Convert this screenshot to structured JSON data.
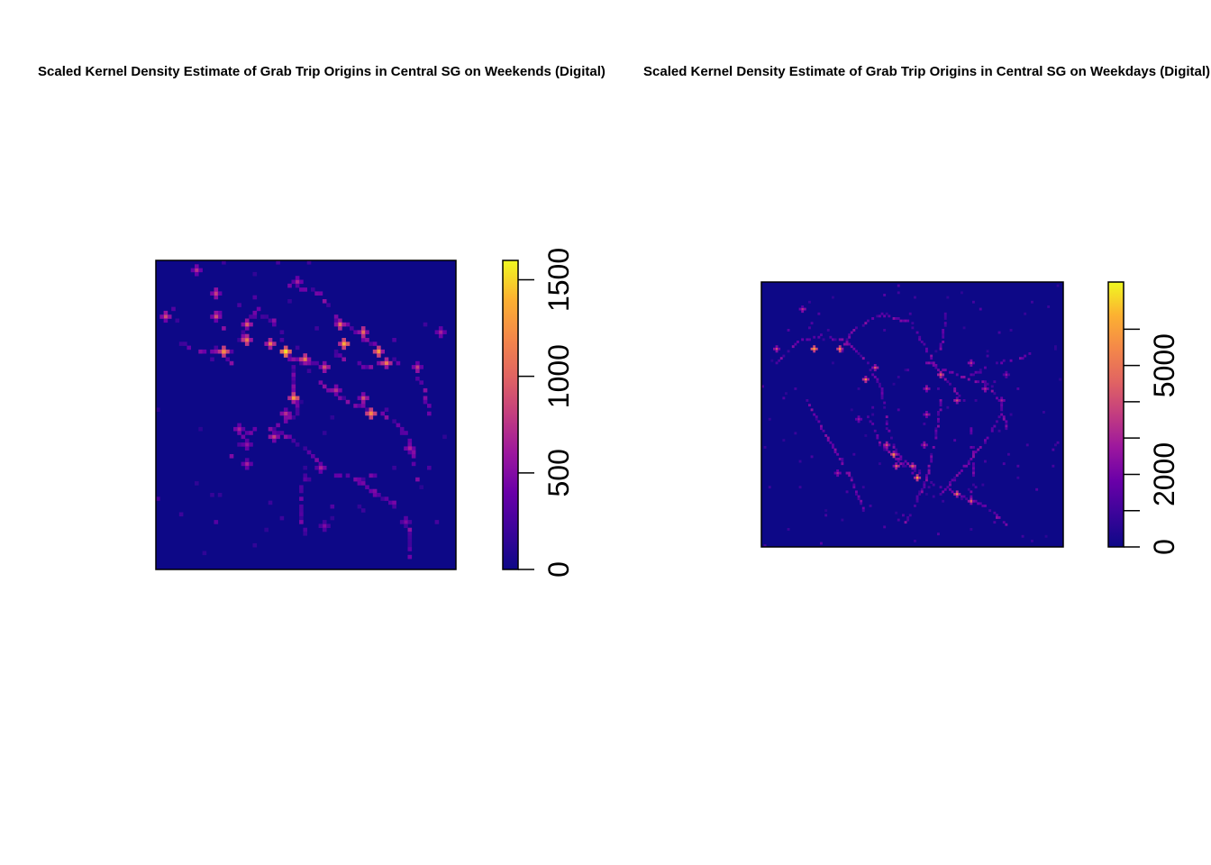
{
  "chart_data": [
    {
      "type": "heatmap",
      "title": "Scaled Kernel Density Estimate of Grab Trip Origins in Central SG on Weekends (Digital)",
      "xlabel": "",
      "ylabel": "",
      "colorbar": {
        "ticks": [
          0,
          500,
          1000,
          1500
        ],
        "range": [
          0,
          1600
        ],
        "palette": "plasma"
      },
      "hotspots": [
        {
          "x": 0.2,
          "y": 0.18,
          "v": 0.55
        },
        {
          "x": 0.22,
          "y": 0.3,
          "v": 0.75
        },
        {
          "x": 0.2,
          "y": 0.1,
          "v": 0.5
        },
        {
          "x": 0.3,
          "y": 0.2,
          "v": 0.6
        },
        {
          "x": 0.3,
          "y": 0.25,
          "v": 0.7
        },
        {
          "x": 0.38,
          "y": 0.27,
          "v": 0.7
        },
        {
          "x": 0.44,
          "y": 0.3,
          "v": 0.95
        },
        {
          "x": 0.5,
          "y": 0.32,
          "v": 0.7
        },
        {
          "x": 0.56,
          "y": 0.35,
          "v": 0.55
        },
        {
          "x": 0.62,
          "y": 0.2,
          "v": 0.65
        },
        {
          "x": 0.63,
          "y": 0.27,
          "v": 0.85
        },
        {
          "x": 0.7,
          "y": 0.23,
          "v": 0.65
        },
        {
          "x": 0.75,
          "y": 0.3,
          "v": 0.8
        },
        {
          "x": 0.78,
          "y": 0.33,
          "v": 0.7
        },
        {
          "x": 0.46,
          "y": 0.45,
          "v": 0.8
        },
        {
          "x": 0.43,
          "y": 0.5,
          "v": 0.45
        },
        {
          "x": 0.6,
          "y": 0.42,
          "v": 0.45
        },
        {
          "x": 0.72,
          "y": 0.5,
          "v": 0.75
        },
        {
          "x": 0.7,
          "y": 0.45,
          "v": 0.55
        },
        {
          "x": 0.02,
          "y": 0.18,
          "v": 0.55
        },
        {
          "x": 0.13,
          "y": 0.03,
          "v": 0.45
        },
        {
          "x": 0.48,
          "y": 0.07,
          "v": 0.4
        },
        {
          "x": 0.28,
          "y": 0.55,
          "v": 0.4
        },
        {
          "x": 0.4,
          "y": 0.58,
          "v": 0.5
        },
        {
          "x": 0.3,
          "y": 0.6,
          "v": 0.35
        },
        {
          "x": 0.55,
          "y": 0.68,
          "v": 0.4
        },
        {
          "x": 0.88,
          "y": 0.35,
          "v": 0.5
        },
        {
          "x": 0.96,
          "y": 0.23,
          "v": 0.4
        },
        {
          "x": 0.86,
          "y": 0.62,
          "v": 0.4
        },
        {
          "x": 0.3,
          "y": 0.67,
          "v": 0.4
        },
        {
          "x": 0.57,
          "y": 0.87,
          "v": 0.3
        },
        {
          "x": 0.84,
          "y": 0.86,
          "v": 0.3
        }
      ],
      "roads": [
        [
          [
            0.2,
            0.1
          ],
          [
            0.22,
            0.2
          ],
          [
            0.2,
            0.3
          ],
          [
            0.25,
            0.33
          ]
        ],
        [
          [
            0.28,
            0.25
          ],
          [
            0.34,
            0.16
          ],
          [
            0.4,
            0.2
          ],
          [
            0.45,
            0.32
          ],
          [
            0.55,
            0.34
          ]
        ],
        [
          [
            0.45,
            0.08
          ],
          [
            0.55,
            0.1
          ],
          [
            0.6,
            0.18
          ],
          [
            0.7,
            0.25
          ],
          [
            0.8,
            0.32
          ],
          [
            0.9,
            0.4
          ],
          [
            0.92,
            0.5
          ]
        ],
        [
          [
            0.46,
            0.35
          ],
          [
            0.47,
            0.5
          ],
          [
            0.4,
            0.55
          ],
          [
            0.3,
            0.56
          ],
          [
            0.25,
            0.65
          ]
        ],
        [
          [
            0.4,
            0.55
          ],
          [
            0.5,
            0.62
          ],
          [
            0.6,
            0.7
          ],
          [
            0.68,
            0.72
          ],
          [
            0.75,
            0.7
          ]
        ],
        [
          [
            0.55,
            0.4
          ],
          [
            0.62,
            0.45
          ],
          [
            0.7,
            0.48
          ],
          [
            0.8,
            0.52
          ],
          [
            0.86,
            0.6
          ],
          [
            0.88,
            0.72
          ]
        ],
        [
          [
            0.5,
            0.7
          ],
          [
            0.48,
            0.8
          ],
          [
            0.5,
            0.9
          ]
        ],
        [
          [
            0.65,
            0.7
          ],
          [
            0.72,
            0.75
          ],
          [
            0.8,
            0.8
          ],
          [
            0.85,
            0.88
          ],
          [
            0.86,
            0.98
          ]
        ],
        [
          [
            0.05,
            0.25
          ],
          [
            0.15,
            0.3
          ],
          [
            0.25,
            0.3
          ]
        ],
        [
          [
            0.6,
            0.3
          ],
          [
            0.7,
            0.35
          ],
          [
            0.78,
            0.33
          ]
        ]
      ]
    },
    {
      "type": "heatmap",
      "title": "Scaled Kernel Density Estimate of Grab Trip Origins in Central SG on Weekdays (Digital)",
      "xlabel": "",
      "ylabel": "",
      "colorbar": {
        "ticks": [
          0,
          2000,
          5000
        ],
        "minor_ticks": [
          1000,
          3000,
          4000,
          6000
        ],
        "range": [
          0,
          7300
        ],
        "palette": "plasma"
      },
      "hotspots": [
        {
          "x": 0.17,
          "y": 0.25,
          "v": 0.85
        },
        {
          "x": 0.26,
          "y": 0.25,
          "v": 0.8
        },
        {
          "x": 0.35,
          "y": 0.37,
          "v": 0.75
        },
        {
          "x": 0.38,
          "y": 0.32,
          "v": 0.6
        },
        {
          "x": 0.05,
          "y": 0.25,
          "v": 0.55
        },
        {
          "x": 0.13,
          "y": 0.1,
          "v": 0.45
        },
        {
          "x": 0.55,
          "y": 0.4,
          "v": 0.5
        },
        {
          "x": 0.6,
          "y": 0.35,
          "v": 0.6
        },
        {
          "x": 0.65,
          "y": 0.45,
          "v": 0.55
        },
        {
          "x": 0.42,
          "y": 0.62,
          "v": 0.55
        },
        {
          "x": 0.44,
          "y": 0.65,
          "v": 0.75
        },
        {
          "x": 0.5,
          "y": 0.7,
          "v": 0.6
        },
        {
          "x": 0.52,
          "y": 0.74,
          "v": 0.85
        },
        {
          "x": 0.45,
          "y": 0.7,
          "v": 0.65
        },
        {
          "x": 0.65,
          "y": 0.8,
          "v": 0.75
        },
        {
          "x": 0.7,
          "y": 0.83,
          "v": 0.6
        },
        {
          "x": 0.54,
          "y": 0.62,
          "v": 0.45
        },
        {
          "x": 0.75,
          "y": 0.4,
          "v": 0.45
        },
        {
          "x": 0.7,
          "y": 0.3,
          "v": 0.45
        },
        {
          "x": 0.32,
          "y": 0.52,
          "v": 0.35
        },
        {
          "x": 0.55,
          "y": 0.5,
          "v": 0.45
        },
        {
          "x": 0.25,
          "y": 0.72,
          "v": 0.4
        },
        {
          "x": 0.82,
          "y": 0.35,
          "v": 0.35
        },
        {
          "x": 0.8,
          "y": 0.45,
          "v": 0.4
        }
      ],
      "roads": [
        [
          [
            0.05,
            0.3
          ],
          [
            0.12,
            0.22
          ],
          [
            0.2,
            0.2
          ],
          [
            0.28,
            0.22
          ],
          [
            0.35,
            0.3
          ],
          [
            0.4,
            0.4
          ]
        ],
        [
          [
            0.25,
            0.3
          ],
          [
            0.3,
            0.18
          ],
          [
            0.4,
            0.12
          ],
          [
            0.5,
            0.15
          ],
          [
            0.55,
            0.25
          ],
          [
            0.6,
            0.35
          ],
          [
            0.68,
            0.45
          ]
        ],
        [
          [
            0.4,
            0.4
          ],
          [
            0.42,
            0.55
          ],
          [
            0.45,
            0.65
          ],
          [
            0.55,
            0.75
          ],
          [
            0.65,
            0.8
          ],
          [
            0.75,
            0.85
          ],
          [
            0.82,
            0.92
          ]
        ],
        [
          [
            0.35,
            0.5
          ],
          [
            0.4,
            0.62
          ],
          [
            0.5,
            0.72
          ]
        ],
        [
          [
            0.55,
            0.3
          ],
          [
            0.65,
            0.35
          ],
          [
            0.75,
            0.38
          ],
          [
            0.8,
            0.45
          ],
          [
            0.82,
            0.55
          ]
        ],
        [
          [
            0.62,
            0.1
          ],
          [
            0.6,
            0.25
          ]
        ],
        [
          [
            0.6,
            0.45
          ],
          [
            0.58,
            0.6
          ],
          [
            0.55,
            0.75
          ],
          [
            0.48,
            0.92
          ]
        ],
        [
          [
            0.7,
            0.55
          ],
          [
            0.71,
            0.7
          ],
          [
            0.7,
            0.85
          ]
        ],
        [
          [
            0.15,
            0.45
          ],
          [
            0.2,
            0.55
          ],
          [
            0.25,
            0.65
          ],
          [
            0.3,
            0.75
          ],
          [
            0.35,
            0.9
          ]
        ],
        [
          [
            0.6,
            0.8
          ],
          [
            0.68,
            0.7
          ],
          [
            0.75,
            0.6
          ],
          [
            0.8,
            0.5
          ]
        ],
        [
          [
            0.7,
            0.35
          ],
          [
            0.8,
            0.3
          ],
          [
            0.88,
            0.28
          ]
        ]
      ]
    }
  ]
}
